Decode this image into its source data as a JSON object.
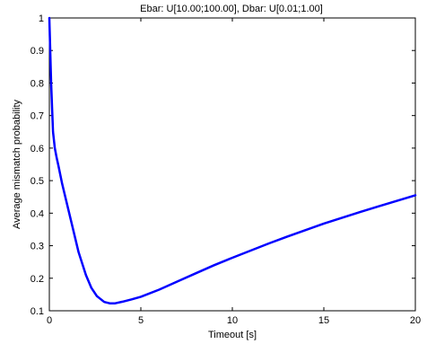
{
  "chart_data": {
    "type": "line",
    "title": "Ebar: U[10.00;100.00], Dbar: U[0.01;1.00]",
    "xlabel": "Timeout [s]",
    "ylabel": "Average mismatch probability",
    "xlim": [
      0,
      20
    ],
    "ylim": [
      0.1,
      1
    ],
    "xticks": [
      "0",
      "5",
      "10",
      "15",
      "20"
    ],
    "yticks": [
      "0.1",
      "0.2",
      "0.3",
      "0.4",
      "0.5",
      "0.6",
      "0.7",
      "0.8",
      "0.9",
      "1"
    ],
    "grid": false,
    "series": [
      {
        "color": "#0000ff",
        "x": [
          0,
          0.05,
          0.1,
          0.15,
          0.2,
          0.3,
          0.4,
          0.5,
          0.7,
          1.0,
          1.3,
          1.6,
          2.0,
          2.3,
          2.6,
          3.0,
          3.3,
          3.6,
          4.0,
          4.5,
          5.0,
          6.0,
          7.0,
          8.0,
          9.0,
          10.0,
          11.0,
          12.0,
          13.0,
          14.0,
          15.0,
          16.0,
          17.0,
          18.0,
          19.0,
          20.0
        ],
        "y": [
          1.0,
          0.9,
          0.8,
          0.72,
          0.65,
          0.6,
          0.57,
          0.545,
          0.49,
          0.42,
          0.35,
          0.28,
          0.21,
          0.17,
          0.145,
          0.127,
          0.123,
          0.123,
          0.128,
          0.135,
          0.143,
          0.165,
          0.19,
          0.215,
          0.24,
          0.263,
          0.285,
          0.307,
          0.328,
          0.348,
          0.368,
          0.386,
          0.404,
          0.421,
          0.438,
          0.455
        ]
      }
    ]
  }
}
